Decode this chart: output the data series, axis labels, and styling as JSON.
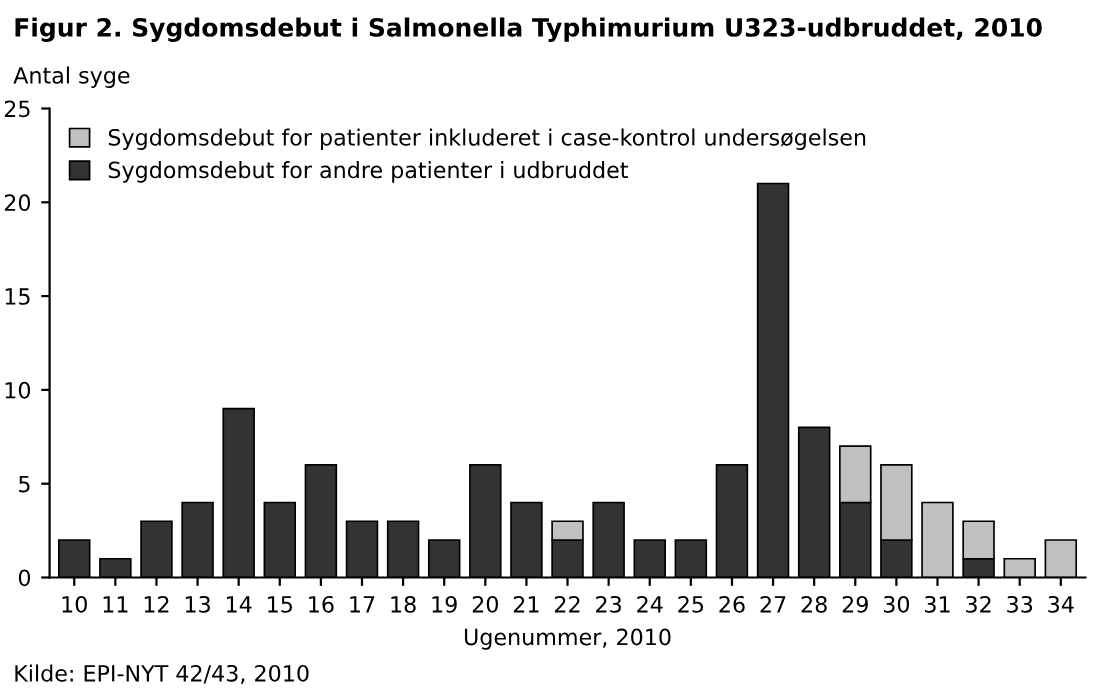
{
  "chart_data": {
    "type": "bar",
    "stacked": true,
    "title": "Figur 2. Sygdomsdebut i Salmonella Typhimurium U323-udbruddet, 2010",
    "ylabel": "Antal syge",
    "xlabel": "Ugenummer, 2010",
    "annotations": [
      "Kilde: EPI-NYT 42/43, 2010"
    ],
    "categories": [
      "10",
      "11",
      "12",
      "13",
      "14",
      "15",
      "16",
      "17",
      "18",
      "19",
      "20",
      "21",
      "22",
      "23",
      "24",
      "25",
      "26",
      "27",
      "28",
      "29",
      "30",
      "31",
      "32",
      "33",
      "34"
    ],
    "series": [
      {
        "name": "Sygdomsdebut for andre patienter i udbruddet",
        "color": "#333333",
        "values": [
          2,
          1,
          3,
          4,
          9,
          4,
          6,
          3,
          3,
          2,
          6,
          4,
          2,
          4,
          2,
          2,
          6,
          21,
          8,
          4,
          2,
          null,
          1,
          null,
          null
        ]
      },
      {
        "name": "Sygdomsdebut for patienter inkluderet i case-kontrol undersøgelsen",
        "color": "#c0c0c0",
        "values": [
          null,
          null,
          null,
          null,
          null,
          null,
          null,
          null,
          null,
          null,
          null,
          null,
          1,
          null,
          null,
          null,
          null,
          null,
          null,
          3,
          4,
          4,
          2,
          1,
          2
        ]
      }
    ],
    "ylim": [
      0,
      25
    ],
    "yticks": [
      0,
      5,
      10,
      15,
      20,
      25
    ],
    "grid": false,
    "legend": "top left"
  }
}
